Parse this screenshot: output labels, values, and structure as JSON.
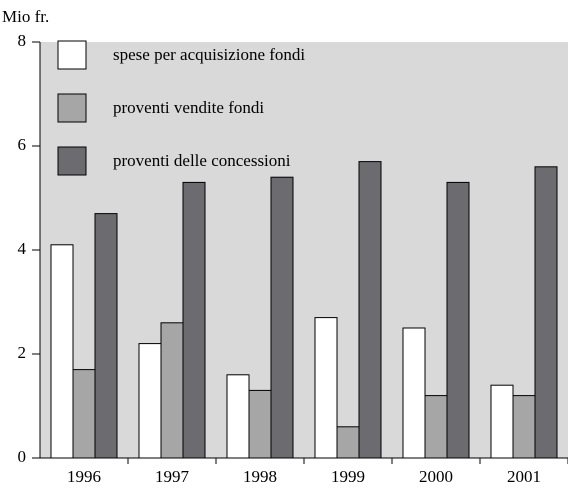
{
  "chart_data": {
    "type": "bar",
    "y_label": "Mio fr.",
    "categories": [
      "1996",
      "1997",
      "1998",
      "1999",
      "2000",
      "2001"
    ],
    "series": [
      {
        "name": "spese per acquisizione fondi",
        "color": "#ffffff",
        "values": [
          4.1,
          2.2,
          1.6,
          2.7,
          2.5,
          1.4
        ]
      },
      {
        "name": "proventi vendite fondi",
        "color": "#a6a6a6",
        "values": [
          1.7,
          2.6,
          1.3,
          0.6,
          1.2,
          1.2
        ]
      },
      {
        "name": "proventi delle concessioni",
        "color": "#6b6b70",
        "values": [
          4.7,
          5.3,
          5.4,
          5.7,
          5.3,
          5.6
        ]
      }
    ],
    "ylim": [
      0,
      8
    ],
    "yticks": [
      0,
      2,
      4,
      6,
      8
    ],
    "grid": false,
    "legend": "top-left",
    "background": "#d9d9d9"
  }
}
